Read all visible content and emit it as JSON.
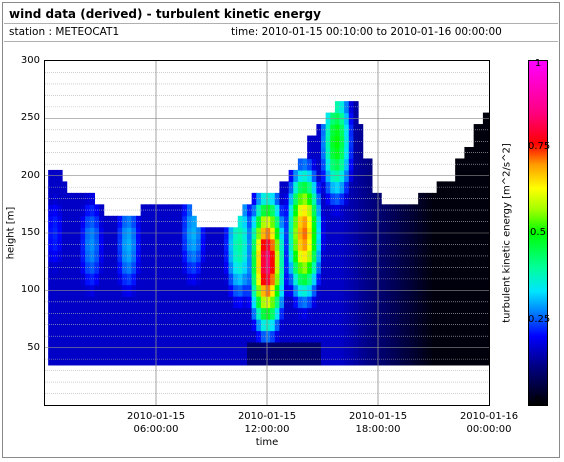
{
  "header": {
    "title": "wind data (derived) - turbulent kinetic energy",
    "station": "station : METEOCAT1",
    "time_range": "time: 2010-01-15 00:10:00 to 2010-01-16 00:00:00"
  },
  "chart_data": {
    "type": "heatmap",
    "xlabel": "time",
    "ylabel": "height [m]",
    "colorbar_label": "turbulent kinetic energy [m^2/s^2]",
    "x_ticks": [
      {
        "line1": "2010-01-15",
        "line2": "06:00:00"
      },
      {
        "line1": "2010-01-15",
        "line2": "12:00:00"
      },
      {
        "line1": "2010-01-15",
        "line2": "18:00:00"
      },
      {
        "line1": "2010-01-16",
        "line2": "00:00:00"
      }
    ],
    "x_range_hours": [
      0.17,
      24.0
    ],
    "y_ticks": [
      "300",
      "250",
      "200",
      "150",
      "100",
      "50"
    ],
    "ylim": [
      0,
      300
    ],
    "colorbar_ticks": [
      "1",
      "0.75",
      "0.5",
      "0.25",
      "0"
    ],
    "colorbar_range": [
      0,
      1
    ],
    "grid": true,
    "min_height_m": 35,
    "profile_top_height_m": [
      {
        "t": 0.17,
        "h": 205
      },
      {
        "t": 0.5,
        "h": 205
      },
      {
        "t": 0.75,
        "h": 195
      },
      {
        "t": 1.0,
        "h": 185
      },
      {
        "t": 2.0,
        "h": 185
      },
      {
        "t": 2.5,
        "h": 175
      },
      {
        "t": 3.0,
        "h": 165
      },
      {
        "t": 4.0,
        "h": 165
      },
      {
        "t": 4.5,
        "h": 165
      },
      {
        "t": 5.0,
        "h": 175
      },
      {
        "t": 7.5,
        "h": 175
      },
      {
        "t": 7.75,
        "h": 165
      },
      {
        "t": 8.0,
        "h": 155
      },
      {
        "t": 10.0,
        "h": 155
      },
      {
        "t": 10.25,
        "h": 165
      },
      {
        "t": 10.5,
        "h": 175
      },
      {
        "t": 11.0,
        "h": 185
      },
      {
        "t": 12.0,
        "h": 185
      },
      {
        "t": 12.5,
        "h": 195
      },
      {
        "t": 13.0,
        "h": 205
      },
      {
        "t": 13.5,
        "h": 215
      },
      {
        "t": 14.0,
        "h": 235
      },
      {
        "t": 14.5,
        "h": 245
      },
      {
        "t": 15.0,
        "h": 255
      },
      {
        "t": 15.5,
        "h": 265
      },
      {
        "t": 16.5,
        "h": 265
      },
      {
        "t": 16.75,
        "h": 245
      },
      {
        "t": 17.0,
        "h": 215
      },
      {
        "t": 17.5,
        "h": 185
      },
      {
        "t": 18.0,
        "h": 175
      },
      {
        "t": 19.5,
        "h": 175
      },
      {
        "t": 20.0,
        "h": 185
      },
      {
        "t": 21.0,
        "h": 195
      },
      {
        "t": 22.0,
        "h": 215
      },
      {
        "t": 22.5,
        "h": 225
      },
      {
        "t": 23.0,
        "h": 245
      },
      {
        "t": 23.5,
        "h": 255
      },
      {
        "t": 24.0,
        "h": 265
      }
    ],
    "tke_peaks": [
      {
        "t_center": 0.5,
        "h_center": 150,
        "value": 0.22
      },
      {
        "t_center": 2.5,
        "h_center": 140,
        "value": 0.28
      },
      {
        "t_center": 4.5,
        "h_center": 140,
        "value": 0.3
      },
      {
        "t_center": 8.0,
        "h_center": 150,
        "value": 0.3
      },
      {
        "t_center": 10.5,
        "h_center": 140,
        "value": 0.4
      },
      {
        "t_center": 12.0,
        "h_center": 125,
        "value": 0.85
      },
      {
        "t_center": 14.0,
        "h_center": 150,
        "value": 0.72
      },
      {
        "t_center": 15.75,
        "h_center": 230,
        "value": 0.5
      }
    ]
  }
}
